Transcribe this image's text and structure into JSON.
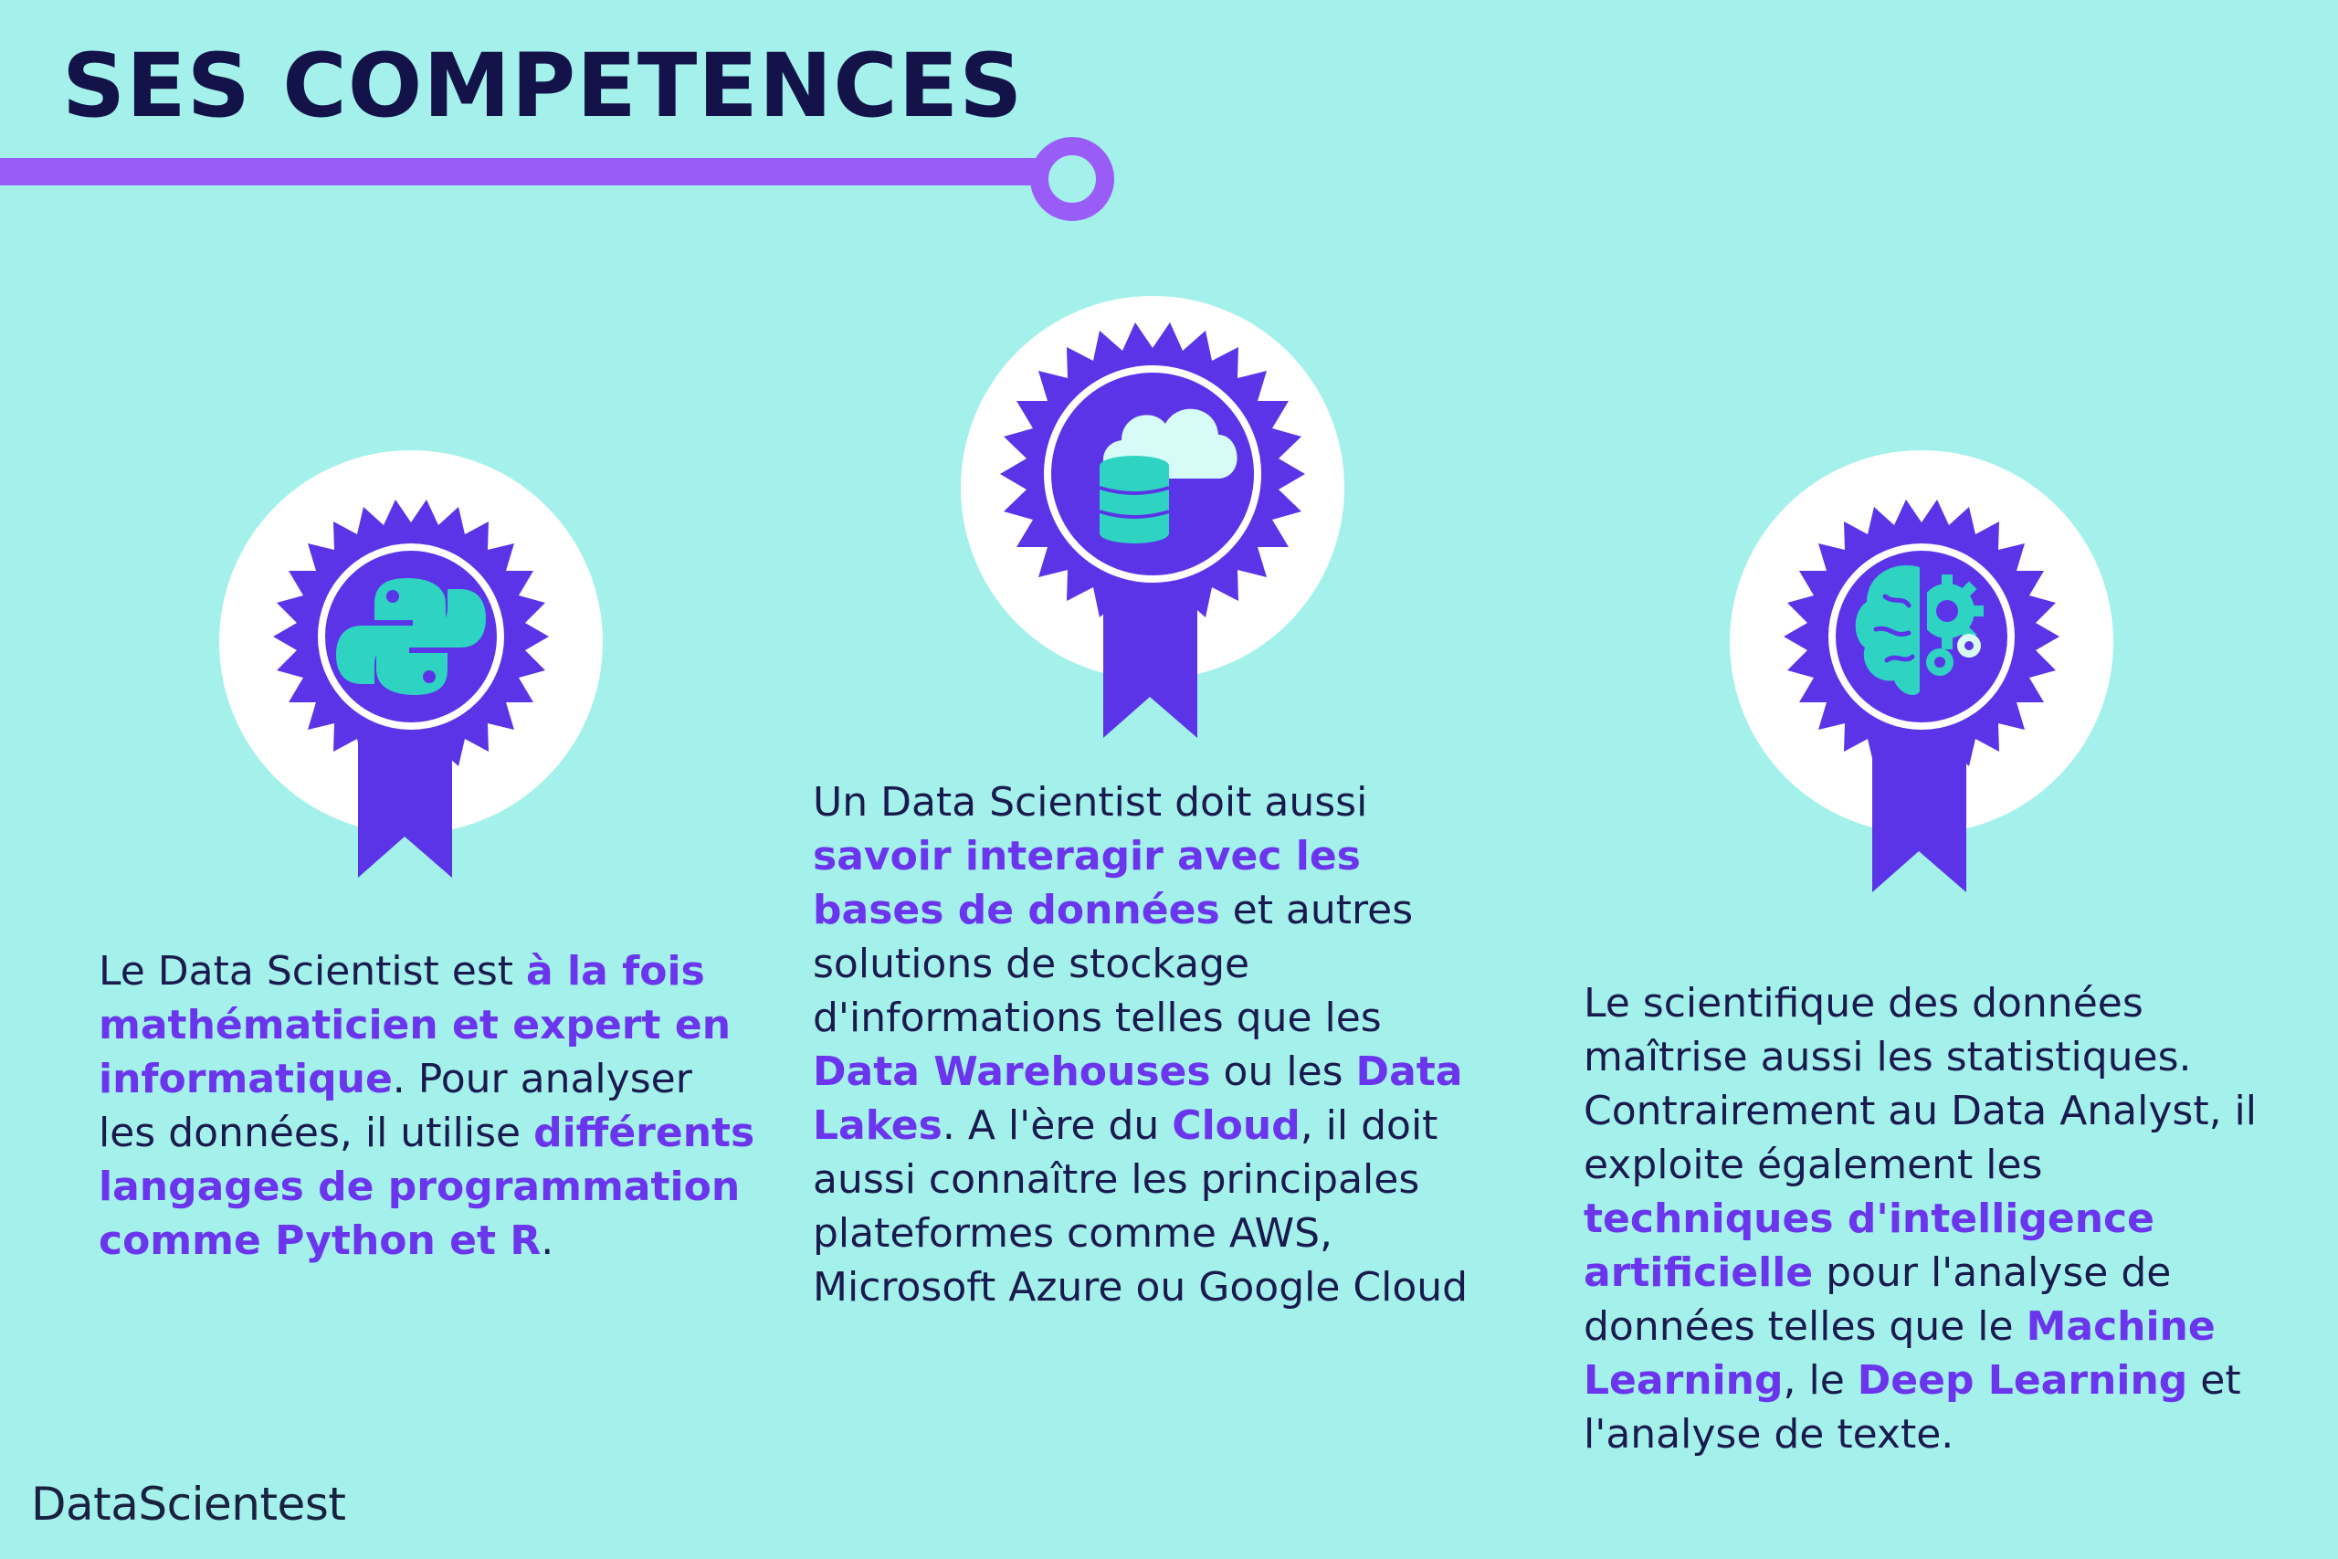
{
  "header": {
    "title": "SES COMPETENCES"
  },
  "columns": [
    {
      "icon": "python-icon",
      "segments": [
        {
          "text": "Le Data Scientist est ",
          "hl": false
        },
        {
          "text": "à la fois mathématicien et expert en informatique",
          "hl": true
        },
        {
          "text": ". Pour analyser les données, il utilise ",
          "hl": false
        },
        {
          "text": "différents langages de programmation comme Python et R",
          "hl": true
        },
        {
          "text": ".",
          "hl": false
        }
      ]
    },
    {
      "icon": "cloud-database-icon",
      "segments": [
        {
          "text": "Un Data Scientist doit aussi ",
          "hl": false
        },
        {
          "text": "savoir interagir avec les bases de données",
          "hl": true
        },
        {
          "text": " et autres solutions de stockage d'informations telles que les ",
          "hl": false
        },
        {
          "text": "Data Warehouses",
          "hl": true
        },
        {
          "text": " ou les ",
          "hl": false
        },
        {
          "text": "Data Lakes",
          "hl": true
        },
        {
          "text": ". A l'ère du ",
          "hl": false
        },
        {
          "text": "Cloud",
          "hl": true
        },
        {
          "text": ", il doit aussi connaître les principales plateformes comme AWS, Microsoft Azure ou Google Cloud",
          "hl": false
        }
      ]
    },
    {
      "icon": "brain-gears-icon",
      "segments": [
        {
          "text": "Le scientifique des données maîtrise aussi les statistiques. Contrairement au Data Analyst, il exploite également les ",
          "hl": false
        },
        {
          "text": "techniques d'intelligence artificielle",
          "hl": true
        },
        {
          "text": " pour l'analyse de données telles que le ",
          "hl": false
        },
        {
          "text": "Machine Learning",
          "hl": true
        },
        {
          "text": ", le ",
          "hl": false
        },
        {
          "text": "Deep Learning",
          "hl": true
        },
        {
          "text": " et l'analyse de texte.",
          "hl": false
        }
      ]
    }
  ],
  "footer": {
    "brand": "DataScientest"
  },
  "colors": {
    "background": "#a3f1ea",
    "accent": "#6a35ec",
    "badge": "#5b34e8",
    "icon": "#2ed3c2",
    "title": "#13134a"
  }
}
